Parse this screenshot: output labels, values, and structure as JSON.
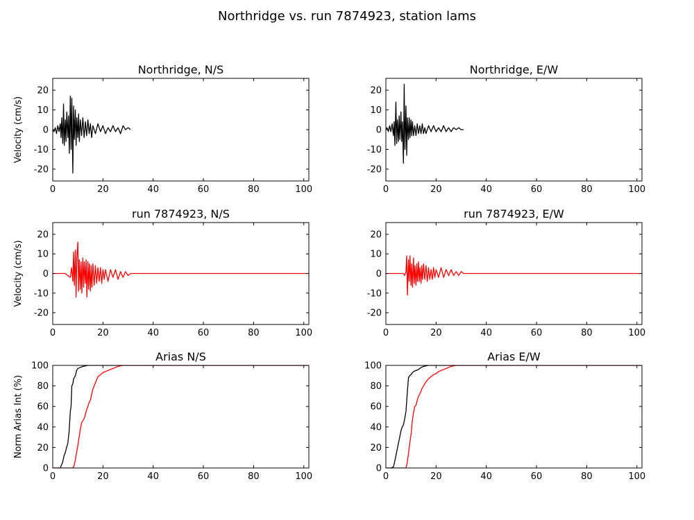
{
  "figure": {
    "title": "Northridge vs. run 7874923, station lams"
  },
  "chart_data": [
    {
      "type": "line",
      "title": "Northridge, N/S",
      "xlabel": "",
      "ylabel": "Velocity (cm/s)",
      "xlim": [
        0,
        102
      ],
      "ylim": [
        -26,
        26
      ],
      "xticks": [
        0,
        20,
        40,
        60,
        80,
        100
      ],
      "yticks": [
        -20,
        -10,
        0,
        10,
        20
      ],
      "series": [
        {
          "color": "#000000",
          "x": [
            0,
            0.5,
            1,
            1.5,
            2,
            2.5,
            3,
            3.3,
            3.6,
            4,
            4.3,
            4.6,
            5,
            5.3,
            5.6,
            6,
            6.3,
            6.6,
            7,
            7.3,
            7.6,
            8,
            8.3,
            8.6,
            9,
            9.3,
            9.6,
            10,
            10.3,
            10.6,
            11,
            11.5,
            12,
            12.5,
            13,
            13.5,
            14,
            14.5,
            15,
            15.5,
            16,
            17,
            18,
            19,
            20,
            21,
            22,
            23,
            24,
            25,
            26,
            27,
            28,
            29,
            30,
            31
          ],
          "y": [
            0,
            -1,
            1,
            -2,
            2,
            -1,
            3,
            -4,
            6,
            -7,
            13,
            -8,
            5,
            -6,
            9,
            -4,
            7,
            -12,
            17,
            -10,
            16,
            -22,
            12,
            -5,
            10,
            -8,
            6,
            -4,
            8,
            -6,
            5,
            -3,
            6,
            -4,
            4,
            -3,
            5,
            -2,
            3,
            -4,
            2,
            -2,
            3,
            -1,
            2,
            -2,
            1,
            -1,
            2,
            -1,
            1,
            -2,
            2,
            0,
            1,
            0
          ]
        }
      ]
    },
    {
      "type": "line",
      "title": "Northridge, E/W",
      "xlabel": "",
      "ylabel": "",
      "xlim": [
        0,
        102
      ],
      "ylim": [
        -26,
        26
      ],
      "xticks": [
        0,
        20,
        40,
        60,
        80,
        100
      ],
      "yticks": [
        -20,
        -10,
        0,
        10,
        20
      ],
      "series": [
        {
          "color": "#000000",
          "x": [
            0,
            0.5,
            1,
            1.5,
            2,
            2.5,
            3,
            3.3,
            3.6,
            4,
            4.3,
            4.6,
            5,
            5.3,
            5.6,
            6,
            6.3,
            6.6,
            7,
            7.3,
            7.6,
            8,
            8.3,
            8.6,
            9,
            9.3,
            9.6,
            10,
            10.3,
            10.6,
            11,
            11.5,
            12,
            12.5,
            13,
            13.5,
            14,
            14.5,
            15,
            15.5,
            16,
            17,
            18,
            19,
            20,
            21,
            22,
            23,
            24,
            25,
            26,
            27,
            28,
            29,
            30,
            31
          ],
          "y": [
            0,
            1,
            -1,
            2,
            -1,
            3,
            -3,
            4,
            -8,
            14,
            -7,
            5,
            -6,
            7,
            -5,
            9,
            -6,
            4,
            -17,
            23,
            -10,
            12,
            -13,
            6,
            -5,
            6,
            -4,
            5,
            -3,
            4,
            -3,
            2,
            -3,
            3,
            -2,
            2,
            -2,
            3,
            -2,
            1,
            -2,
            2,
            -1,
            2,
            -1,
            1,
            -1,
            2,
            -1,
            1,
            -1,
            1,
            0,
            1,
            0,
            0
          ]
        }
      ]
    },
    {
      "type": "line",
      "title": "run 7874923, N/S",
      "xlabel": "",
      "ylabel": "Velocity (cm/s)",
      "xlim": [
        0,
        102
      ],
      "ylim": [
        -26,
        26
      ],
      "xticks": [
        0,
        20,
        40,
        60,
        80,
        100
      ],
      "yticks": [
        -20,
        -10,
        0,
        10,
        20
      ],
      "series": [
        {
          "color": "#ff0000",
          "x": [
            0,
            5,
            6,
            7,
            7.5,
            8,
            8.3,
            8.6,
            9,
            9.3,
            9.6,
            10,
            10.3,
            10.6,
            11,
            11.3,
            11.6,
            12,
            12.3,
            12.6,
            13,
            13.3,
            13.6,
            14,
            14.3,
            14.6,
            15,
            15.3,
            15.6,
            16,
            16.5,
            17,
            17.5,
            18,
            18.5,
            19,
            19.5,
            20,
            20.5,
            21,
            22,
            23,
            24,
            25,
            26,
            27,
            28,
            29,
            30,
            31,
            32,
            40,
            60,
            80,
            102
          ],
          "y": [
            0,
            0,
            -1,
            -2,
            3,
            -4,
            11,
            -6,
            12,
            -12,
            8,
            16,
            -9,
            7,
            -8,
            6,
            -10,
            8,
            -7,
            6,
            -5,
            7,
            -12,
            6,
            -8,
            5,
            -9,
            4,
            -7,
            5,
            -6,
            4,
            -5,
            3,
            -4,
            3,
            -5,
            2,
            -3,
            2,
            -4,
            2,
            -2,
            2,
            -3,
            1,
            -2,
            1,
            -1,
            0,
            0,
            0,
            0,
            0,
            0
          ]
        }
      ]
    },
    {
      "type": "line",
      "title": "run 7874923, E/W",
      "xlabel": "",
      "ylabel": "",
      "xlim": [
        0,
        102
      ],
      "ylim": [
        -26,
        26
      ],
      "xticks": [
        0,
        20,
        40,
        60,
        80,
        100
      ],
      "yticks": [
        -20,
        -10,
        0,
        10,
        20
      ],
      "series": [
        {
          "color": "#ff0000",
          "x": [
            0,
            6,
            7,
            7.5,
            8,
            8.3,
            8.6,
            9,
            9.3,
            9.6,
            10,
            10.3,
            10.6,
            11,
            11.3,
            11.6,
            12,
            12.3,
            12.6,
            13,
            13.3,
            13.6,
            14,
            14.3,
            14.6,
            15,
            15.5,
            16,
            16.5,
            17,
            17.5,
            18,
            18.5,
            19,
            19.5,
            20,
            21,
            22,
            23,
            24,
            25,
            26,
            27,
            28,
            29,
            30,
            31,
            32,
            40,
            60,
            80,
            102
          ],
          "y": [
            0,
            0,
            0,
            -1,
            1,
            9,
            -11,
            7,
            -4,
            9,
            -6,
            5,
            -7,
            8,
            -5,
            4,
            -6,
            5,
            -4,
            6,
            -4,
            3,
            -5,
            4,
            -3,
            5,
            -3,
            4,
            -4,
            3,
            -3,
            2,
            -3,
            3,
            -2,
            2,
            -2,
            3,
            -2,
            2,
            -1,
            2,
            -1,
            1,
            -1,
            1,
            0,
            0,
            0,
            0,
            0,
            0
          ]
        }
      ]
    },
    {
      "type": "line",
      "title": "Arias N/S",
      "xlabel": "",
      "ylabel": "Norm Arias Int (%)",
      "xlim": [
        0,
        102
      ],
      "ylim": [
        0,
        100
      ],
      "xticks": [
        0,
        20,
        40,
        60,
        80,
        100
      ],
      "yticks": [
        0,
        20,
        40,
        60,
        80,
        100
      ],
      "series": [
        {
          "color": "#000000",
          "x": [
            0,
            2,
            3,
            3.5,
            4,
            4.5,
            5,
            5.5,
            6,
            6.5,
            7,
            7.3,
            7.6,
            8,
            8.3,
            8.6,
            9,
            9.5,
            10,
            11,
            12,
            13,
            14,
            15,
            17,
            20,
            102
          ],
          "y": [
            0,
            0,
            0,
            3,
            6,
            12,
            15,
            20,
            24,
            35,
            55,
            60,
            80,
            82,
            87,
            88,
            90,
            95,
            97,
            98,
            99,
            99.5,
            100,
            100,
            100,
            100,
            100
          ]
        },
        {
          "color": "#ff0000",
          "x": [
            0,
            7,
            8,
            8.5,
            9,
            9.5,
            10,
            10.5,
            11,
            11.5,
            12,
            12.5,
            13,
            13.5,
            14,
            14.5,
            15,
            15.5,
            16,
            16.5,
            17,
            17.5,
            18,
            19,
            20,
            22,
            24,
            26,
            28,
            102
          ],
          "y": [
            0,
            0,
            0,
            2,
            8,
            15,
            22,
            30,
            38,
            44,
            46,
            48,
            52,
            57,
            60,
            64,
            66,
            72,
            77,
            80,
            83,
            86,
            89,
            91,
            93,
            95,
            97,
            99,
            100,
            100
          ]
        }
      ]
    },
    {
      "type": "line",
      "title": "Arias E/W",
      "xlabel": "",
      "ylabel": "",
      "xlim": [
        0,
        102
      ],
      "ylim": [
        0,
        100
      ],
      "xticks": [
        0,
        20,
        40,
        60,
        80,
        100
      ],
      "yticks": [
        0,
        20,
        40,
        60,
        80,
        100
      ],
      "series": [
        {
          "color": "#000000",
          "x": [
            0,
            2,
            3,
            3.5,
            4,
            4.5,
            5,
            5.5,
            6,
            6.5,
            7,
            7.5,
            8,
            8.5,
            9,
            9.5,
            10,
            11,
            12,
            13,
            14,
            15,
            16,
            17,
            20,
            102
          ],
          "y": [
            0,
            0,
            1,
            6,
            12,
            18,
            24,
            30,
            36,
            40,
            42,
            48,
            55,
            72,
            88,
            90,
            91,
            94,
            95,
            96,
            98,
            99,
            99.5,
            100,
            100,
            100
          ]
        },
        {
          "color": "#ff0000",
          "x": [
            0,
            7,
            8,
            8.5,
            9,
            9.5,
            10,
            10.5,
            11,
            11.5,
            12,
            12.5,
            13,
            13.5,
            14,
            14.5,
            15,
            16,
            17,
            18,
            19,
            20,
            21,
            22,
            24,
            26,
            28,
            102
          ],
          "y": [
            0,
            0,
            0,
            5,
            14,
            24,
            32,
            45,
            54,
            60,
            61,
            66,
            70,
            72,
            75,
            78,
            80,
            84,
            87,
            89,
            91,
            92,
            94,
            95,
            97,
            99,
            100,
            100
          ]
        }
      ]
    }
  ]
}
